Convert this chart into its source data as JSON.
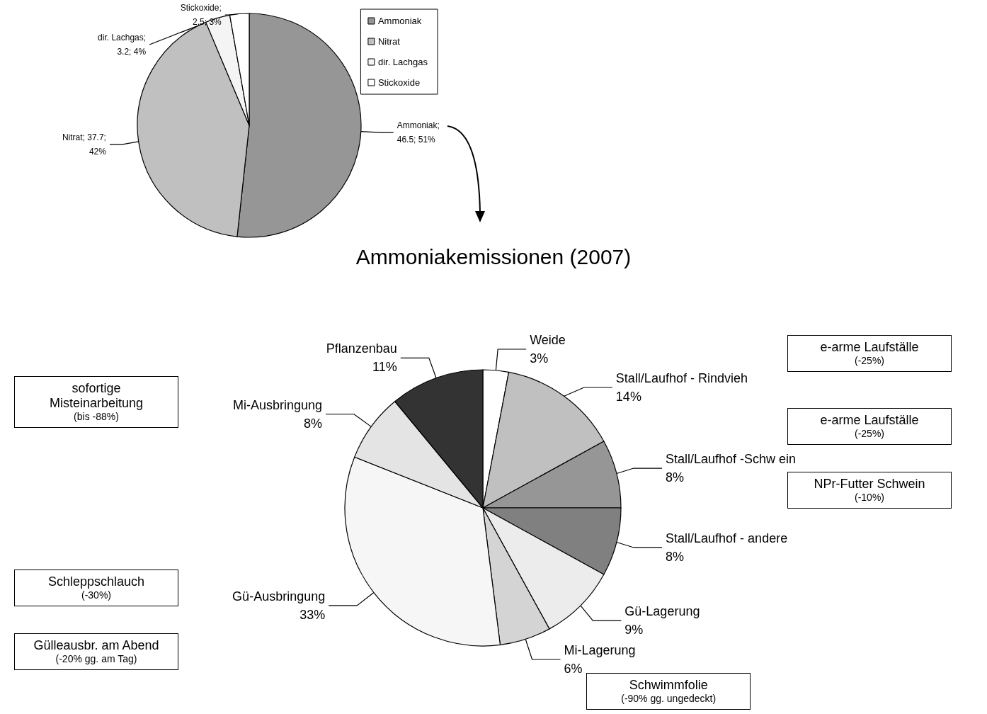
{
  "chart_data": [
    {
      "type": "pie",
      "categories": [
        "Ammoniak",
        "Nitrat",
        "dir. Lachgas",
        "Stickoxide"
      ],
      "values": [
        46.5,
        37.7,
        3.2,
        2.5
      ],
      "colors": [
        "#969696",
        "#c0c0c0",
        "#f4f4f4",
        "#ffffff"
      ],
      "value_labels": [
        ";\n46.5; 51%",
        "; 37.7;\n42%",
        ";\n3.2; 4%",
        ";\n2.5; 3%"
      ],
      "legend": "top right"
    },
    {
      "type": "pie",
      "title": "Ammoniakemissionen (2007)",
      "categories": [
        "Weide",
        "Stall/Laufhof - Rindvieh",
        "Stall/Laufhof -Schw ein",
        "Stall/Laufhof - andere",
        "Gü-Lagerung",
        "Mi-Lagerung",
        "Gü-Ausbringung",
        "Mi-Ausbringung",
        "Pflanzenbau"
      ],
      "values": [
        3,
        14,
        8,
        8,
        9,
        6,
        33,
        8,
        11
      ],
      "colors": [
        "#ffffff",
        "#c0c0c0",
        "#969696",
        "#808080",
        "#ececec",
        "#d4d4d4",
        "#f6f6f6",
        "#e4e4e4",
        "#333333"
      ],
      "value_labels": [
        "3%",
        "14%",
        "8%",
        "8%",
        "9%",
        "6%",
        "33%",
        "8%",
        "11%"
      ],
      "annotations": [
        {
          "text": "e-arme Laufställe\n(-25%)",
          "x": "Stall/Laufhof - Rindvieh"
        },
        {
          "text": "e-arme Laufställe\n(-25%)",
          "x": "Stall/Laufhof -Schw ein"
        },
        {
          "text": "NPr-Futter Schwein\n(-10%)",
          "x": "Stall/Laufhof -Schw ein"
        },
        {
          "text": "Schwimmfolie\n(-90% gg. ungedeckt)",
          "x": "Gü-Lagerung"
        },
        {
          "text": "Schleppschlauch\n(-30%)",
          "x": "Gü-Ausbringung"
        },
        {
          "text": "Gülleausbr. am Abend\n(-20% gg. am Tag)",
          "x": "Gü-Ausbringung"
        },
        {
          "text": "sofortige\nMisteinarbeitung\n(bis -88%)",
          "x": "Mi-Ausbringung"
        }
      ]
    }
  ]
}
